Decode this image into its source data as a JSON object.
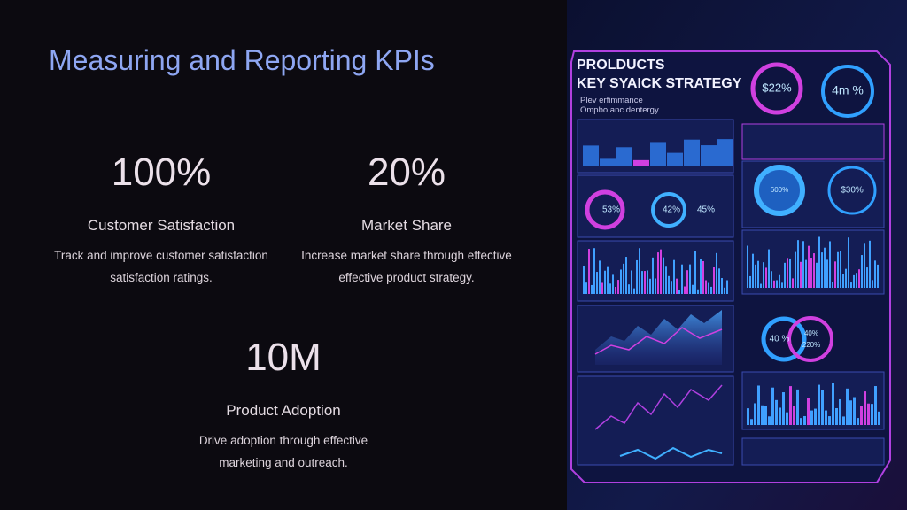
{
  "slide": {
    "title": "Measuring and Reporting KPIs",
    "kpis": [
      {
        "value": "100%",
        "label": "Customer Satisfaction",
        "description": [
          "Track and improve customer satisfaction",
          "satisfaction ratings."
        ]
      },
      {
        "value": "20%",
        "label": "Market Share",
        "description": [
          "Increase market share through effective",
          "effective product strategy."
        ]
      },
      {
        "value": "10M",
        "label": "Product Adoption",
        "description": [
          "Drive adoption through effective",
          "marketing and outreach."
        ]
      }
    ],
    "image": {
      "heading": [
        "PROLDUCTS",
        "KEY SYAICK STRATEGY"
      ],
      "subheading": [
        "Plev erfimmance",
        "Ompbo anc dentergy"
      ],
      "gauges": [
        "$22%",
        "4m %",
        "53%",
        "42%",
        "45%",
        "600%",
        "$30%",
        "40 %",
        "40%",
        "220%"
      ]
    }
  }
}
